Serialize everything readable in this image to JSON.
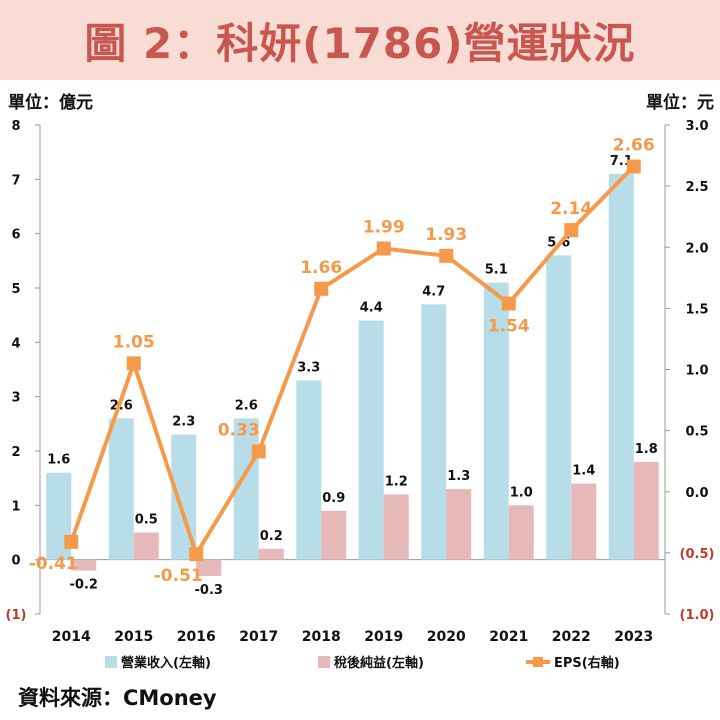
{
  "title": "圖 2：科妍(1786)營運狀況",
  "unit_left": "單位：億元",
  "unit_right": "單位：元",
  "source": "資料來源：CMoney",
  "colors": {
    "title_bg": "#f9ddd5",
    "title_text": "#c8574f",
    "revenue": "#b7dde8",
    "net_income": "#e6b8b8",
    "eps": "#f59a4a",
    "negative_label": "#c0392b"
  },
  "chart_data": {
    "type": "bar",
    "categories": [
      "2014",
      "2015",
      "2016",
      "2017",
      "2018",
      "2019",
      "2020",
      "2021",
      "2022",
      "2023"
    ],
    "series": [
      {
        "name": "營業收入(左軸)",
        "type": "bar",
        "axis": "left",
        "values": [
          1.6,
          2.6,
          2.3,
          2.6,
          3.3,
          4.4,
          4.7,
          5.1,
          5.6,
          7.1
        ],
        "labels": [
          "1.6",
          "2.6",
          "2.3",
          "2.6",
          "3.3",
          "4.4",
          "4.7",
          "5.1",
          "5.6",
          "7.1"
        ]
      },
      {
        "name": "稅後純益(左軸)",
        "type": "bar",
        "axis": "left",
        "values": [
          -0.2,
          0.5,
          -0.3,
          0.2,
          0.9,
          1.2,
          1.3,
          1.0,
          1.4,
          1.8
        ],
        "labels": [
          "-0.2",
          "0.5",
          "-0.3",
          "0.2",
          "0.9",
          "1.2",
          "1.3",
          "1.0",
          "1.4",
          "1.8"
        ]
      },
      {
        "name": "EPS(右軸)",
        "type": "line",
        "axis": "right",
        "values": [
          -0.41,
          1.05,
          -0.51,
          0.33,
          1.66,
          1.99,
          1.93,
          1.54,
          2.14,
          2.66
        ],
        "labels": [
          "-0.41",
          "1.05",
          "-0.51",
          "0.33",
          "1.66",
          "1.99",
          "1.93",
          "1.54",
          "2.14",
          "2.66"
        ]
      }
    ],
    "left_axis": {
      "ylim": [
        -1,
        8
      ],
      "ticks": [
        "(1)",
        "0",
        "1",
        "2",
        "3",
        "4",
        "5",
        "6",
        "7",
        "8"
      ]
    },
    "right_axis": {
      "ylim": [
        -1.0,
        3.0
      ],
      "ticks": [
        "(1.0)",
        "(0.5)",
        "0.0",
        "0.5",
        "1.0",
        "1.5",
        "2.0",
        "2.5",
        "3.0"
      ]
    },
    "grid": false,
    "legend": "bottom"
  }
}
